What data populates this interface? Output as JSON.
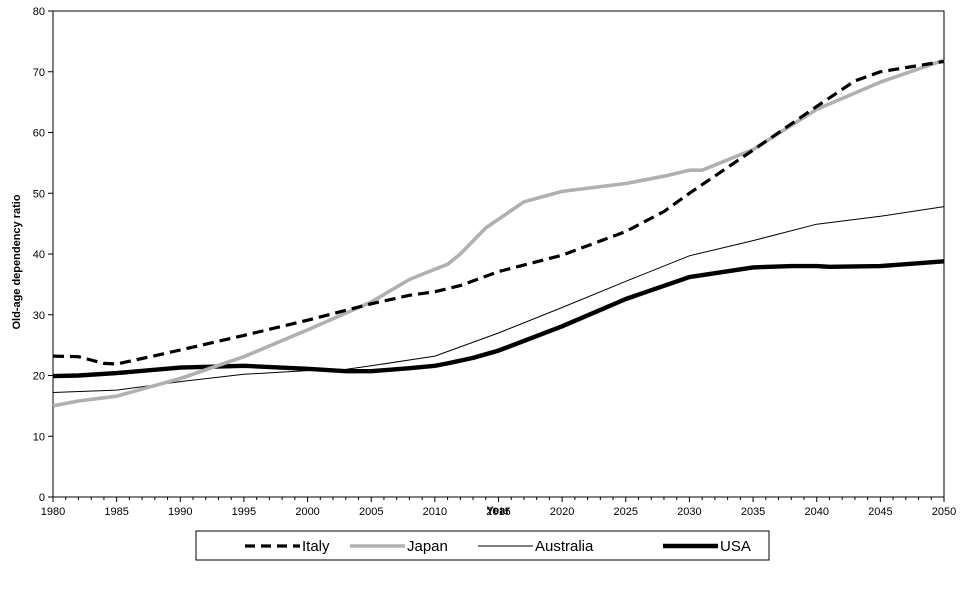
{
  "chart_data": {
    "type": "line",
    "title": "",
    "xlabel": "Year",
    "ylabel": "Old-age dependency ratio",
    "xlim": [
      1980,
      2050
    ],
    "ylim": [
      0,
      80
    ],
    "xticks": [
      1980,
      1985,
      1990,
      1995,
      2000,
      2005,
      2010,
      2015,
      2020,
      2025,
      2030,
      2035,
      2040,
      2045,
      2050
    ],
    "yticks": [
      0,
      10,
      20,
      30,
      40,
      50,
      60,
      70,
      80
    ],
    "grid": false,
    "legend_position": "bottom",
    "series": [
      {
        "name": "Italy",
        "color": "#000000",
        "style": "dashed-thick",
        "points": [
          [
            1980,
            23.2
          ],
          [
            1982,
            23.1
          ],
          [
            1984,
            22.0
          ],
          [
            1985,
            21.9
          ],
          [
            1987,
            22.8
          ],
          [
            1990,
            24.2
          ],
          [
            1995,
            26.6
          ],
          [
            2000,
            29.1
          ],
          [
            2005,
            31.8
          ],
          [
            2008,
            33.2
          ],
          [
            2010,
            33.8
          ],
          [
            2012,
            34.8
          ],
          [
            2015,
            37.1
          ],
          [
            2020,
            39.8
          ],
          [
            2025,
            43.7
          ],
          [
            2028,
            47.0
          ],
          [
            2030,
            50.0
          ],
          [
            2035,
            57.1
          ],
          [
            2040,
            64.3
          ],
          [
            2043,
            68.5
          ],
          [
            2045,
            70.0
          ],
          [
            2050,
            71.7
          ]
        ]
      },
      {
        "name": "Japan",
        "color": "#b0b0b0",
        "style": "solid-thick",
        "points": [
          [
            1980,
            15.0
          ],
          [
            1982,
            15.8
          ],
          [
            1985,
            16.6
          ],
          [
            1990,
            19.5
          ],
          [
            1995,
            23.1
          ],
          [
            2000,
            27.5
          ],
          [
            2005,
            32.1
          ],
          [
            2008,
            35.8
          ],
          [
            2010,
            37.5
          ],
          [
            2011,
            38.3
          ],
          [
            2012,
            40.0
          ],
          [
            2014,
            44.3
          ],
          [
            2017,
            48.6
          ],
          [
            2020,
            50.3
          ],
          [
            2025,
            51.6
          ],
          [
            2028,
            52.8
          ],
          [
            2030,
            53.8
          ],
          [
            2031,
            53.8
          ],
          [
            2035,
            57.2
          ],
          [
            2040,
            63.8
          ],
          [
            2045,
            68.3
          ],
          [
            2050,
            71.9
          ]
        ]
      },
      {
        "name": "Australia",
        "color": "#000000",
        "style": "solid-thin",
        "points": [
          [
            1980,
            17.2
          ],
          [
            1985,
            17.6
          ],
          [
            1990,
            19.0
          ],
          [
            1995,
            20.2
          ],
          [
            2000,
            20.8
          ],
          [
            2003,
            21.0
          ],
          [
            2005,
            21.6
          ],
          [
            2010,
            23.2
          ],
          [
            2015,
            27.0
          ],
          [
            2020,
            31.2
          ],
          [
            2025,
            35.5
          ],
          [
            2030,
            39.7
          ],
          [
            2035,
            42.2
          ],
          [
            2040,
            44.9
          ],
          [
            2045,
            46.2
          ],
          [
            2050,
            47.8
          ]
        ]
      },
      {
        "name": "USA",
        "color": "#000000",
        "style": "solid-heavy",
        "points": [
          [
            1980,
            19.9
          ],
          [
            1982,
            20.0
          ],
          [
            1985,
            20.4
          ],
          [
            1990,
            21.3
          ],
          [
            1995,
            21.6
          ],
          [
            2000,
            21.1
          ],
          [
            2003,
            20.7
          ],
          [
            2005,
            20.7
          ],
          [
            2008,
            21.2
          ],
          [
            2010,
            21.6
          ],
          [
            2011,
            22.0
          ],
          [
            2013,
            22.9
          ],
          [
            2015,
            24.1
          ],
          [
            2020,
            28.1
          ],
          [
            2025,
            32.6
          ],
          [
            2030,
            36.2
          ],
          [
            2035,
            37.8
          ],
          [
            2038,
            38.0
          ],
          [
            2040,
            38.0
          ],
          [
            2041,
            37.9
          ],
          [
            2045,
            38.0
          ],
          [
            2050,
            38.8
          ]
        ]
      }
    ]
  }
}
